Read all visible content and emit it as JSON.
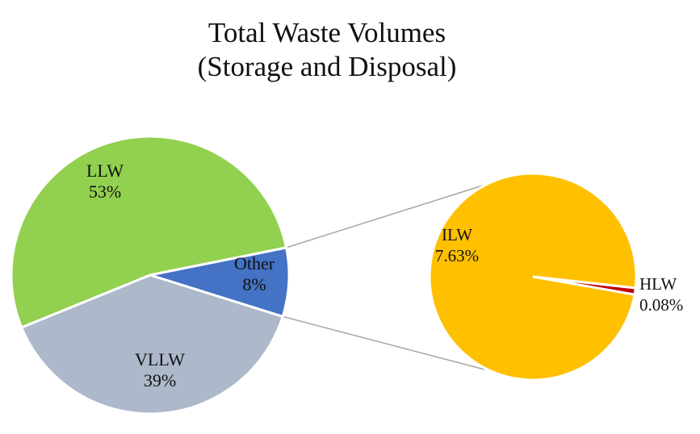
{
  "chart_data": {
    "type": "bar-of-pie",
    "title": "Total Waste Volumes",
    "subtitle": "(Storage and Disposal)",
    "main_pie": {
      "slices": [
        {
          "label": "LLW",
          "value": 53,
          "value_label": "53%",
          "color": "#92D050"
        },
        {
          "label": "Other",
          "value": 8,
          "value_label": "8%",
          "color": "#4472C4"
        },
        {
          "label": "VLLW",
          "value": 39,
          "value_label": "39%",
          "color": "#ADB9CA"
        }
      ]
    },
    "secondary_pie": {
      "slices": [
        {
          "label": "ILW",
          "value": 7.63,
          "value_label": "7.63%",
          "color": "#FFC000"
        },
        {
          "label": "HLW",
          "value": 0.08,
          "value_label": "0.08%",
          "color": "#C00000"
        }
      ]
    }
  }
}
